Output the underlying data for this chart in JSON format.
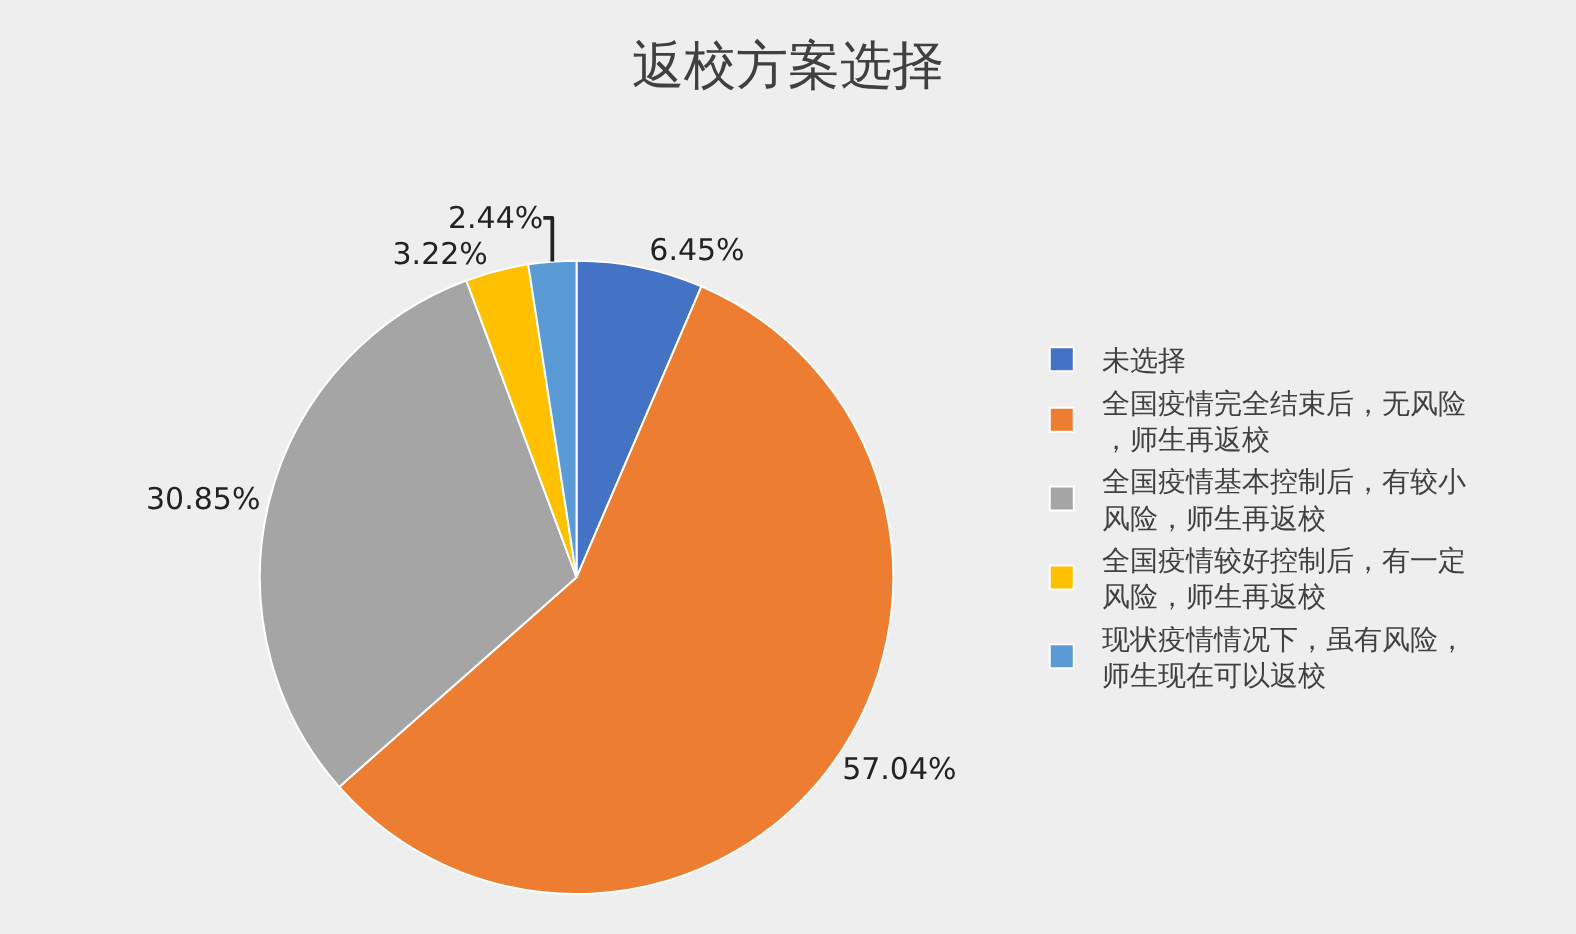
{
  "chart_data": {
    "type": "pie",
    "title": "返校方案选择",
    "categories": [
      "未选择",
      "全国疫情完全结束后，无风险，师生再返校",
      "全国疫情基本控制后，有较小风险，师生再返校",
      "全国疫情较好控制后，有一定风险，师生再返校",
      "现状疫情情况下，虽有风险，师生现在可以返校"
    ],
    "values": [
      6.45,
      57.04,
      30.85,
      3.22,
      2.44
    ],
    "value_labels": [
      "6.45%",
      "57.04%",
      "30.85%",
      "3.22%",
      "2.44%"
    ],
    "colors": [
      "#4472c4",
      "#ed7d31",
      "#a5a5a5",
      "#ffc000",
      "#5b9bd5"
    ],
    "legend": "right"
  }
}
